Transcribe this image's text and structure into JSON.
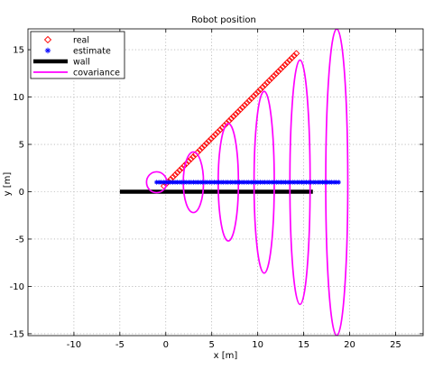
{
  "chart_data": {
    "type": "line",
    "title": "Robot position",
    "xlabel": "x [m]",
    "ylabel": "y [m]",
    "xlim": [
      -15,
      28
    ],
    "ylim": [
      -15.2,
      17.2
    ],
    "xticks": [
      -10,
      -5,
      0,
      5,
      10,
      15,
      20,
      25
    ],
    "yticks": [
      -15,
      -10,
      -5,
      0,
      5,
      10,
      15
    ],
    "grid": true,
    "legend_position": "top-left",
    "legend": [
      {
        "key": "real",
        "label": "real"
      },
      {
        "key": "estimate",
        "label": "estimate"
      },
      {
        "key": "wall",
        "label": "wall"
      },
      {
        "key": "covariance",
        "label": "covariance"
      }
    ],
    "series": [
      {
        "key": "wall",
        "style": "thick-line",
        "color": "#000000",
        "x": [
          -5,
          16
        ],
        "y": [
          0,
          0
        ]
      },
      {
        "key": "real",
        "style": "diamond-markers",
        "color": "#ff0000",
        "x_start": -0.2,
        "y_start": 0.6,
        "x_end": 14.2,
        "y_end": 14.6,
        "count": 60
      },
      {
        "key": "estimate",
        "style": "star-markers",
        "color": "#0000ff",
        "x_start": -1,
        "y_start": 1,
        "x_end": 18.8,
        "y_end": 1,
        "count": 80
      },
      {
        "key": "covariance",
        "style": "ellipses",
        "color": "#ff00ff",
        "ellipses": [
          {
            "cx": -1,
            "cy": 1,
            "rx": 1.1,
            "ry": 1.1
          },
          {
            "cx": 3,
            "cy": 1,
            "rx": 1.1,
            "ry": 3.2
          },
          {
            "cx": 6.8,
            "cy": 1,
            "rx": 1.1,
            "ry": 6.2
          },
          {
            "cx": 10.7,
            "cy": 1,
            "rx": 1.1,
            "ry": 9.6
          },
          {
            "cx": 14.6,
            "cy": 1,
            "rx": 1.1,
            "ry": 12.9
          },
          {
            "cx": 18.6,
            "cy": 1,
            "rx": 1.2,
            "ry": 16.2
          }
        ]
      }
    ]
  }
}
